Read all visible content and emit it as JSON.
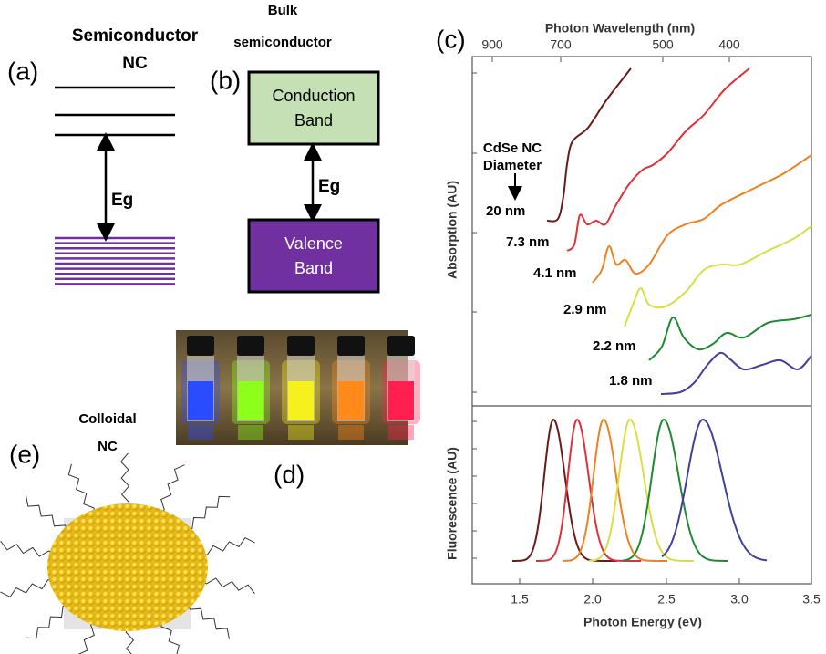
{
  "panel_a": {
    "label": "(a)",
    "title": [
      "Semiconductor",
      "NC"
    ],
    "gap": "Eg"
  },
  "panel_b": {
    "label": "(b)",
    "title": [
      "Bulk",
      "semiconductor"
    ],
    "conduction": [
      "Conduction",
      "Band"
    ],
    "gap": "Eg",
    "valence": [
      "Valence",
      "Band"
    ]
  },
  "panel_c": {
    "label": "(c)",
    "top_axis_title": "Photon Wavelength (nm)",
    "top_ticks": [
      "900",
      "700",
      "500",
      "400"
    ],
    "bottom_axis_title": "Photon Energy (eV)",
    "bottom_ticks": [
      "1.5",
      "2.0",
      "2.5",
      "3.0",
      "3.5"
    ],
    "absorption_axis": "Absorption (AU)",
    "fluorescence_axis": "Fluorescence (AU)",
    "legend_title": [
      "CdSe NC",
      "Diameter"
    ],
    "sizes": [
      "20 nm",
      "7.3 nm",
      "4.1 nm",
      "2.9 nm",
      "2.2 nm",
      "1.8 nm"
    ]
  },
  "panel_d": {
    "label": "(d)"
  },
  "panel_e": {
    "label": "(e)",
    "title": [
      "Colloidal",
      "NC"
    ]
  }
}
